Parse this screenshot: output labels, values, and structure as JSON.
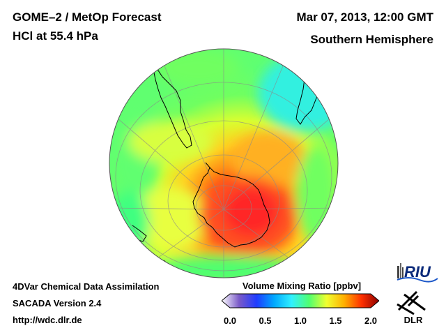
{
  "header": {
    "title_line1": "GOME–2 / MetOp Forecast",
    "title_line2": "HCl at 55.4 hPa",
    "date": "Mar 07, 2013, 12:00 GMT",
    "region": "Southern Hemisphere"
  },
  "footer": {
    "line1": "4DVar Chemical Data Assimilation",
    "line2": "SACADA Version 2.4",
    "line3": "http://wdc.dlr.de"
  },
  "colorbar": {
    "title": "Volume Mixing Ratio [ppbv]",
    "min": 0.0,
    "max": 2.0,
    "ticks": [
      "0.0",
      "0.5",
      "1.0",
      "1.5",
      "2.0"
    ],
    "colors": [
      "#ffffff",
      "#7a5ac8",
      "#1f3cff",
      "#00a8ff",
      "#30f0ff",
      "#50ff70",
      "#f0ff30",
      "#ffb000",
      "#ff3000",
      "#8b0000"
    ]
  },
  "logos": {
    "riu": "RIU",
    "dlr": "DLR",
    "riu_icon": "riu-tower-icon",
    "dlr_icon": "dlr-emblem-icon"
  }
}
